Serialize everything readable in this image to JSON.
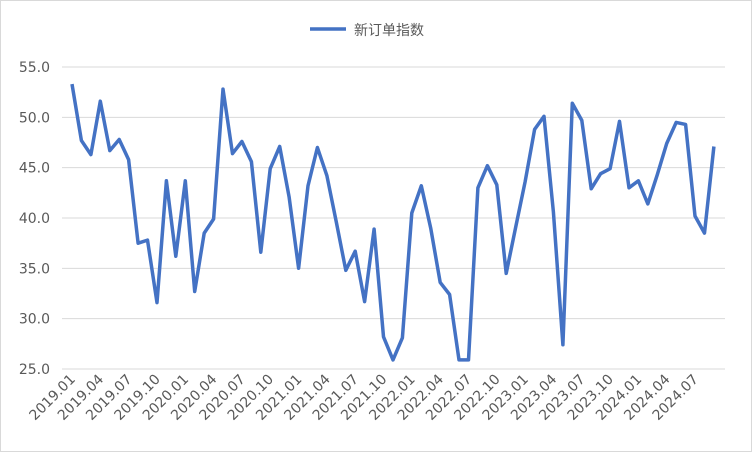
{
  "chart_data": {
    "type": "line",
    "x": [
      "2019.01",
      null,
      null,
      "2019.04",
      null,
      null,
      "2019.07",
      null,
      null,
      "2019.10",
      null,
      null,
      "2020.01",
      null,
      null,
      "2020.04",
      null,
      null,
      "2020.07",
      null,
      null,
      "2020.10",
      null,
      null,
      "2021.01",
      null,
      null,
      "2021.04",
      null,
      null,
      "2021.07",
      null,
      null,
      "2021.10",
      null,
      null,
      "2022.01",
      null,
      null,
      "2022.04",
      null,
      null,
      "2022.07",
      null,
      null,
      "2022.10",
      null,
      null,
      "2023.01",
      null,
      null,
      "2023.04",
      null,
      null,
      "2023.07",
      null,
      null,
      "2023.10",
      null,
      null,
      "2024.01",
      null,
      null,
      "2024.04",
      null,
      null,
      "2024.07",
      null,
      null
    ],
    "series": [
      {
        "name": "新订单指数",
        "color": "#4472c4",
        "values": [
          53.3,
          47.7,
          46.3,
          51.6,
          46.7,
          47.8,
          45.8,
          37.5,
          37.8,
          31.6,
          43.7,
          36.2,
          43.7,
          32.7,
          38.5,
          39.9,
          52.8,
          46.4,
          47.6,
          45.6,
          36.6,
          44.9,
          47.1,
          42.1,
          35.0,
          43.2,
          47.0,
          44.2,
          39.6,
          34.8,
          36.7,
          31.7,
          38.9,
          28.2,
          25.9,
          28.1,
          40.5,
          43.2,
          39.0,
          33.6,
          32.4,
          25.9,
          25.9,
          43.0,
          45.2,
          43.3,
          34.5,
          39.1,
          43.6,
          48.8,
          50.1,
          40.6,
          27.4,
          51.4,
          49.7,
          42.9,
          44.4,
          44.9,
          49.6,
          43.0,
          43.7,
          41.4,
          44.3,
          47.4,
          49.5,
          49.3,
          40.2,
          38.5,
          47.1
        ]
      }
    ],
    "ylim": [
      25,
      55
    ],
    "yticks": [
      {
        "value": 25,
        "label": "25.0"
      },
      {
        "value": 30,
        "label": "30.0"
      },
      {
        "value": 35,
        "label": "35.0"
      },
      {
        "value": 40,
        "label": "40.0"
      },
      {
        "value": 45,
        "label": "45.0"
      },
      {
        "value": 50,
        "label": "50.0"
      },
      {
        "value": 55,
        "label": "55.0"
      }
    ],
    "grid": true
  }
}
